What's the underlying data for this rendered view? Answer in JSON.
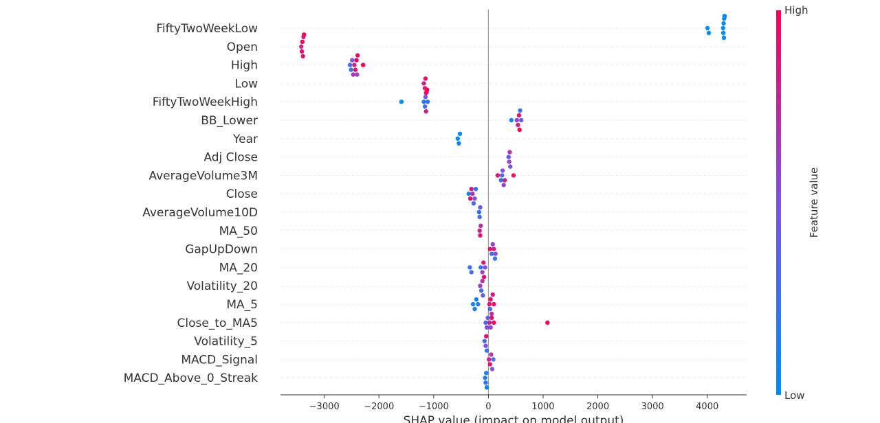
{
  "chart_data": {
    "type": "scatter",
    "subtype": "shap-beeswarm",
    "xlabel": "SHAP value (impact on model output)",
    "xlim": [
      -3800,
      4720
    ],
    "x_ticks": [
      -3000,
      -2000,
      -1000,
      0,
      1000,
      2000,
      3000,
      4000
    ],
    "x_tick_labels": [
      "−3000",
      "−2000",
      "−1000",
      "0",
      "1000",
      "2000",
      "3000",
      "4000"
    ],
    "zero_line": 0,
    "colorbar": {
      "title": "Feature value",
      "high_label": "High",
      "low_label": "Low",
      "low_color": "#008bfb",
      "high_color": "#ff0052"
    },
    "features": [
      {
        "name": "FiftyTwoWeekLow",
        "points": [
          [
            4005,
            0.0
          ],
          [
            4030,
            0.0
          ],
          [
            4290,
            0.0
          ],
          [
            4295,
            0.0
          ],
          [
            4300,
            0.0
          ],
          [
            4305,
            0.0
          ],
          [
            4310,
            0.0
          ],
          [
            4315,
            0.0
          ],
          [
            4320,
            0.0
          ]
        ]
      },
      {
        "name": "Open",
        "points": [
          [
            -3420,
            0.8
          ],
          [
            -3410,
            0.9
          ],
          [
            -3400,
            1.0
          ],
          [
            -3390,
            0.9
          ],
          [
            -3380,
            0.8
          ],
          [
            -3370,
            1.0
          ]
        ]
      },
      {
        "name": "High",
        "points": [
          [
            -2530,
            0.3
          ],
          [
            -2510,
            0.2
          ],
          [
            -2490,
            0.5
          ],
          [
            -2470,
            0.7
          ],
          [
            -2450,
            0.8
          ],
          [
            -2430,
            0.9
          ],
          [
            -2410,
            0.95
          ],
          [
            -2400,
            0.6
          ],
          [
            -2390,
            0.9
          ],
          [
            -2290,
            1.0
          ]
        ]
      },
      {
        "name": "Low",
        "points": [
          [
            -1180,
            0.8
          ],
          [
            -1160,
            0.9
          ],
          [
            -1150,
            0.95
          ],
          [
            -1140,
            0.85
          ]
        ]
      },
      {
        "name": "FiftyTwoWeekHigh",
        "points": [
          [
            -1590,
            0.0
          ],
          [
            -1180,
            0.1
          ],
          [
            -1160,
            0.3
          ],
          [
            -1150,
            0.5
          ],
          [
            -1140,
            0.8
          ],
          [
            -1130,
            0.95
          ],
          [
            -1120,
            1.0
          ],
          [
            -1110,
            0.2
          ]
        ]
      },
      {
        "name": "BB_Lower",
        "points": [
          [
            420,
            0.05
          ],
          [
            520,
            0.6
          ],
          [
            540,
            0.8
          ],
          [
            560,
            0.9
          ],
          [
            570,
            1.0
          ],
          [
            580,
            0.2
          ],
          [
            600,
            0.4
          ]
        ]
      },
      {
        "name": "Year",
        "points": [
          [
            -560,
            0.0
          ],
          [
            -540,
            0.05
          ],
          [
            -520,
            0.0
          ]
        ]
      },
      {
        "name": "Adj Close",
        "points": [
          [
            370,
            0.4
          ],
          [
            380,
            0.6
          ],
          [
            390,
            0.7
          ],
          [
            400,
            0.5
          ]
        ]
      },
      {
        "name": "AverageVolume3M",
        "points": [
          [
            170,
            0.9
          ],
          [
            230,
            0.2
          ],
          [
            250,
            0.3
          ],
          [
            260,
            0.5
          ],
          [
            280,
            0.6
          ],
          [
            300,
            0.8
          ],
          [
            460,
            0.95
          ]
        ]
      },
      {
        "name": "Close",
        "points": [
          [
            -360,
            0.1
          ],
          [
            -330,
            0.9
          ],
          [
            -310,
            0.8
          ],
          [
            -290,
            0.7
          ],
          [
            -270,
            0.3
          ],
          [
            -250,
            0.5
          ],
          [
            -230,
            0.2
          ]
        ]
      },
      {
        "name": "AverageVolume10D",
        "points": [
          [
            -170,
            0.2
          ],
          [
            -160,
            0.3
          ],
          [
            -150,
            0.4
          ]
        ]
      },
      {
        "name": "MA_50",
        "points": [
          [
            -160,
            0.8
          ],
          [
            -150,
            0.9
          ],
          [
            -140,
            0.7
          ]
        ]
      },
      {
        "name": "GapUpDown",
        "points": [
          [
            30,
            0.9
          ],
          [
            60,
            0.3
          ],
          [
            80,
            0.6
          ],
          [
            100,
            0.8
          ],
          [
            120,
            0.2
          ],
          [
            130,
            0.5
          ]
        ]
      },
      {
        "name": "MA_20",
        "points": [
          [
            -340,
            0.2
          ],
          [
            -310,
            0.3
          ],
          [
            -140,
            0.2
          ],
          [
            -110,
            0.6
          ],
          [
            -90,
            0.9
          ],
          [
            -80,
            0.95
          ],
          [
            -60,
            0.5
          ]
        ]
      },
      {
        "name": "Volatility_20",
        "points": [
          [
            -150,
            0.6
          ],
          [
            -130,
            0.3
          ],
          [
            -110,
            0.7
          ],
          [
            -100,
            0.4
          ]
        ]
      },
      {
        "name": "MA_5",
        "points": [
          [
            -280,
            0.05
          ],
          [
            -250,
            0.1
          ],
          [
            -220,
            0.05
          ],
          [
            -190,
            0.15
          ],
          [
            20,
            0.9
          ],
          [
            40,
            0.95
          ],
          [
            60,
            0.7
          ],
          [
            80,
            0.85
          ],
          [
            100,
            0.9
          ],
          [
            30,
            0.3
          ]
        ]
      },
      {
        "name": "Close_to_MA5",
        "points": [
          [
            -50,
            0.3
          ],
          [
            -30,
            0.5
          ],
          [
            -10,
            0.4
          ],
          [
            20,
            0.8
          ],
          [
            40,
            0.6
          ],
          [
            60,
            0.9
          ],
          [
            100,
            0.95
          ],
          [
            1080,
            0.98
          ]
        ]
      },
      {
        "name": "Volatility_5",
        "points": [
          [
            -70,
            0.3
          ],
          [
            -50,
            0.5
          ],
          [
            -40,
            0.9
          ],
          [
            -30,
            0.2
          ]
        ]
      },
      {
        "name": "MACD_Signal",
        "points": [
          [
            10,
            0.8
          ],
          [
            30,
            0.9
          ],
          [
            50,
            0.7
          ],
          [
            70,
            0.5
          ],
          [
            90,
            0.3
          ]
        ]
      },
      {
        "name": "MACD_Above_0_Streak",
        "points": [
          [
            -60,
            0.1
          ],
          [
            -50,
            0.2
          ],
          [
            -40,
            0.15
          ],
          [
            -30,
            0.05
          ]
        ]
      }
    ]
  }
}
